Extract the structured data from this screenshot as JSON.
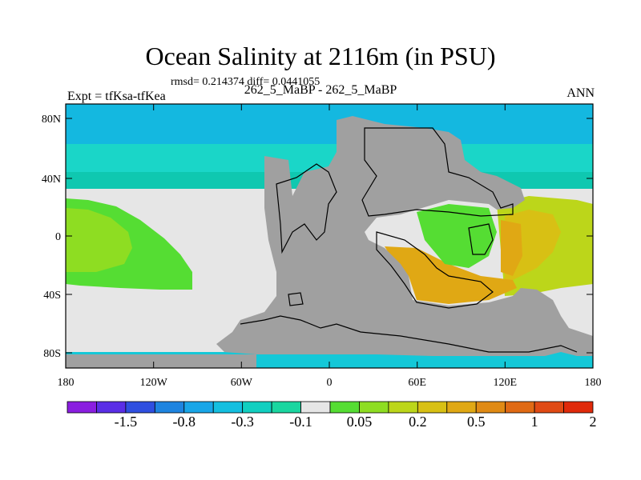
{
  "title": "Ocean Salinity at 2116m (in PSU)",
  "stats_line": "rmsd= 0.214374 diff= 0.0441055",
  "experiment_label": "Expt = tfKsa-tfKea",
  "center_subtitle": "262_5_MaBP - 262_5_MaBP",
  "period_label": "ANN",
  "lat_ticks": [
    "80N",
    "40N",
    "0",
    "40S",
    "80S"
  ],
  "lon_ticks": [
    "180",
    "120W",
    "60W",
    "0",
    "60E",
    "120E",
    "180"
  ],
  "colorbar": {
    "labels": [
      "-1.5",
      "-0.8",
      "-0.3",
      "-0.1",
      "0.05",
      "0.2",
      "0.5",
      "1",
      "2"
    ],
    "colors": [
      "#8a1ee0",
      "#5a2ee6",
      "#2f4fe0",
      "#1e84e0",
      "#19a6e8",
      "#14bfe0",
      "#11cfc0",
      "#1ad6a0",
      "#e6e6e6",
      "#55dd33",
      "#8edd22",
      "#bcd61a",
      "#d8c014",
      "#e0a814",
      "#e08a14",
      "#e06a14",
      "#e04a14",
      "#e02a0a"
    ]
  },
  "colors": {
    "land": "#a0a0a0",
    "no_change": "#e6e6e6",
    "north_band": "#14b8e0",
    "green_west": "#8edd22",
    "orange_east": "#e0a814",
    "yellow_east": "#bcd61a"
  }
}
